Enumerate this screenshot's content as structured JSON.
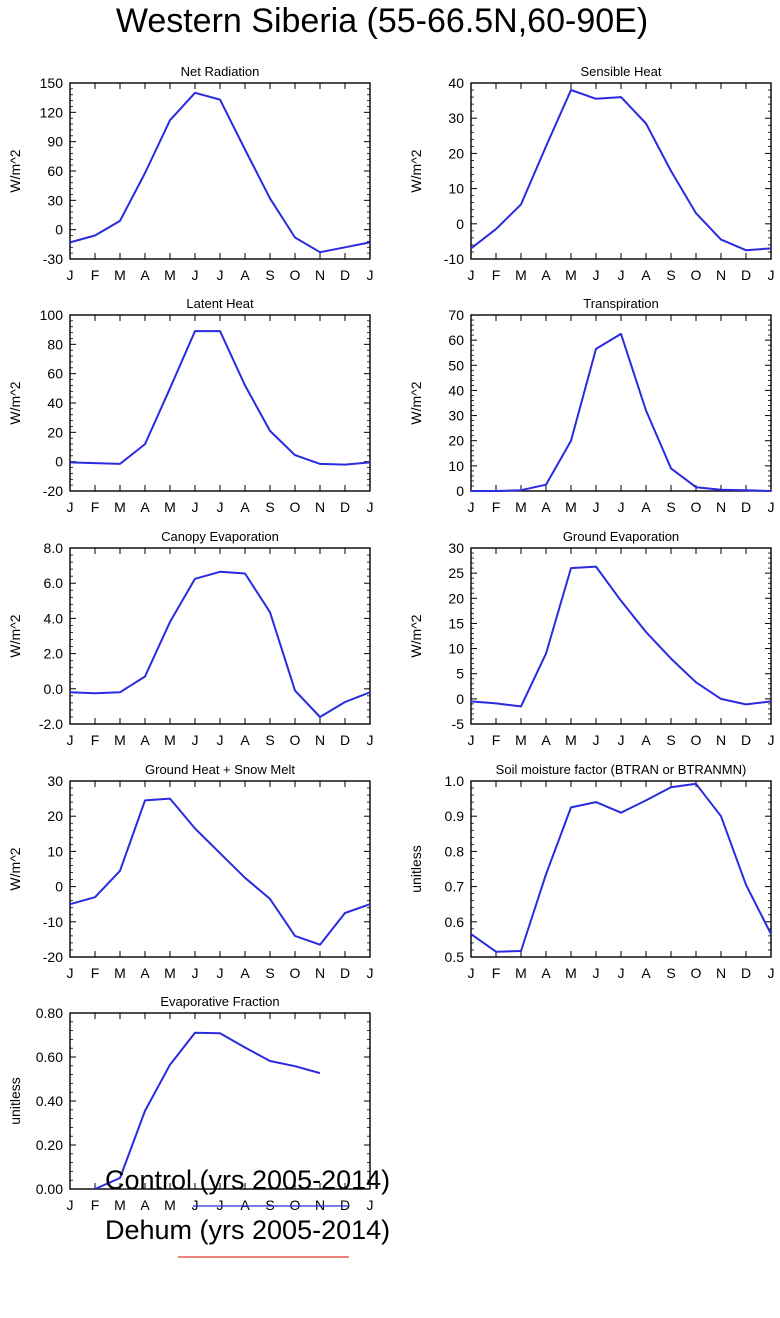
{
  "figure": {
    "title": "Western Siberia (55-66.5N,60-90E)",
    "legend": [
      {
        "label": "Control (yrs 2005-2014)",
        "color": "#2a2ae0"
      },
      {
        "label": "Dehum (yrs 2005-2014)",
        "color": "#e03a2a"
      }
    ]
  },
  "chart_data": [
    {
      "type": "line",
      "title": "Net Radiation",
      "ylabel": "W/m^2",
      "xlabel": "",
      "categories": [
        "J",
        "F",
        "M",
        "A",
        "M",
        "J",
        "J",
        "A",
        "S",
        "O",
        "N",
        "D",
        "J"
      ],
      "ylim": [
        -30,
        150
      ],
      "yticks": [
        -30,
        0,
        30,
        60,
        90,
        120,
        150
      ],
      "ytick_labels": [
        "-30",
        "0",
        "30",
        "60",
        "90",
        "120",
        "150"
      ],
      "series": [
        {
          "name": "Control (yrs 2005-2014)",
          "color": "#2a2ae0",
          "values": [
            -13,
            -6,
            9,
            58,
            112,
            140,
            133,
            82,
            32,
            -8,
            -23,
            -18,
            -13
          ]
        }
      ]
    },
    {
      "type": "line",
      "title": "Sensible Heat",
      "ylabel": "W/m^2",
      "xlabel": "",
      "categories": [
        "J",
        "F",
        "M",
        "A",
        "M",
        "J",
        "J",
        "A",
        "S",
        "O",
        "N",
        "D",
        "J"
      ],
      "ylim": [
        -10,
        40
      ],
      "yticks": [
        -10,
        0,
        10,
        20,
        30,
        40
      ],
      "ytick_labels": [
        "-10",
        "0",
        "10",
        "20",
        "30",
        "40"
      ],
      "series": [
        {
          "name": "Control (yrs 2005-2014)",
          "color": "#2a2ae0",
          "values": [
            -7,
            -1.5,
            5.5,
            22,
            38,
            35.5,
            36,
            28.5,
            15,
            3,
            -4.5,
            -7.5,
            -7
          ]
        }
      ]
    },
    {
      "type": "line",
      "title": "Latent Heat",
      "ylabel": "W/m^2",
      "xlabel": "",
      "categories": [
        "J",
        "F",
        "M",
        "A",
        "M",
        "J",
        "J",
        "A",
        "S",
        "O",
        "N",
        "D",
        "J"
      ],
      "ylim": [
        -20,
        100
      ],
      "yticks": [
        -20,
        0,
        20,
        40,
        60,
        80,
        100
      ],
      "ytick_labels": [
        "-20",
        "0",
        "20",
        "40",
        "60",
        "80",
        "100"
      ],
      "series": [
        {
          "name": "Control (yrs 2005-2014)",
          "color": "#2a2ae0",
          "values": [
            -0.5,
            -1,
            -1.5,
            12,
            50,
            89,
            89,
            52,
            21,
            4.5,
            -1.5,
            -2,
            -0.5
          ]
        }
      ]
    },
    {
      "type": "line",
      "title": "Transpiration",
      "ylabel": "W/m^2",
      "xlabel": "",
      "categories": [
        "J",
        "F",
        "M",
        "A",
        "M",
        "J",
        "J",
        "A",
        "S",
        "O",
        "N",
        "D",
        "J"
      ],
      "ylim": [
        0,
        70
      ],
      "yticks": [
        0,
        10,
        20,
        30,
        40,
        50,
        60,
        70
      ],
      "ytick_labels": [
        "0",
        "10",
        "20",
        "30",
        "40",
        "50",
        "60",
        "70"
      ],
      "series": [
        {
          "name": "Control (yrs 2005-2014)",
          "color": "#2a2ae0",
          "values": [
            0,
            0,
            0.3,
            2.5,
            20,
            56.5,
            62.5,
            32,
            9,
            1.5,
            0.5,
            0.3,
            0
          ]
        }
      ]
    },
    {
      "type": "line",
      "title": "Canopy Evaporation",
      "ylabel": "W/m^2",
      "xlabel": "",
      "categories": [
        "J",
        "F",
        "M",
        "A",
        "M",
        "J",
        "J",
        "A",
        "S",
        "O",
        "N",
        "D",
        "J"
      ],
      "ylim": [
        -2.0,
        8.0
      ],
      "yticks": [
        -2,
        0,
        2,
        4,
        6,
        8
      ],
      "ytick_labels": [
        "-2.0",
        "0.0",
        "2.0",
        "4.0",
        "6.0",
        "8.0"
      ],
      "series": [
        {
          "name": "Control (yrs 2005-2014)",
          "color": "#2a2ae0",
          "values": [
            -0.2,
            -0.25,
            -0.2,
            0.7,
            3.8,
            6.25,
            6.65,
            6.55,
            4.35,
            -0.1,
            -1.6,
            -0.75,
            -0.2
          ]
        }
      ]
    },
    {
      "type": "line",
      "title": "Ground Evaporation",
      "ylabel": "W/m^2",
      "xlabel": "",
      "categories": [
        "J",
        "F",
        "M",
        "A",
        "M",
        "J",
        "J",
        "A",
        "S",
        "O",
        "N",
        "D",
        "J"
      ],
      "ylim": [
        -5,
        30
      ],
      "yticks": [
        -5,
        0,
        5,
        10,
        15,
        20,
        25,
        30
      ],
      "ytick_labels": [
        "-5",
        "0",
        "5",
        "10",
        "15",
        "20",
        "25",
        "30"
      ],
      "series": [
        {
          "name": "Control (yrs 2005-2014)",
          "color": "#2a2ae0",
          "values": [
            -0.5,
            -0.9,
            -1.5,
            9,
            26,
            26.3,
            19.5,
            13.3,
            8,
            3.3,
            0,
            -1.1,
            -0.5
          ]
        }
      ]
    },
    {
      "type": "line",
      "title": "Ground Heat + Snow Melt",
      "ylabel": "W/m^2",
      "xlabel": "",
      "categories": [
        "J",
        "F",
        "M",
        "A",
        "M",
        "J",
        "J",
        "A",
        "S",
        "O",
        "N",
        "D",
        "J"
      ],
      "ylim": [
        -20,
        30
      ],
      "yticks": [
        -20,
        -10,
        0,
        10,
        20,
        30
      ],
      "ytick_labels": [
        "-20",
        "-10",
        "0",
        "10",
        "20",
        "30"
      ],
      "series": [
        {
          "name": "Control (yrs 2005-2014)",
          "color": "#2a2ae0",
          "values": [
            -5,
            -3,
            4.5,
            24.5,
            25,
            16.5,
            9.5,
            2.5,
            -3.5,
            -14,
            -16.5,
            -7.5,
            -5
          ]
        }
      ]
    },
    {
      "type": "line",
      "title": "Soil moisture factor (BTRAN or BTRANMN)",
      "ylabel": "unitless",
      "xlabel": "",
      "categories": [
        "J",
        "F",
        "M",
        "A",
        "M",
        "J",
        "J",
        "A",
        "S",
        "O",
        "N",
        "D",
        "J"
      ],
      "ylim": [
        0.5,
        1.0
      ],
      "yticks": [
        0.5,
        0.6,
        0.7,
        0.8,
        0.9,
        1.0
      ],
      "ytick_labels": [
        "0.5",
        "0.6",
        "0.7",
        "0.8",
        "0.9",
        "1.0"
      ],
      "series": [
        {
          "name": "Control (yrs 2005-2014)",
          "color": "#2a2ae0",
          "values": [
            0.565,
            0.515,
            0.517,
            0.735,
            0.925,
            0.94,
            0.91,
            0.945,
            0.982,
            0.992,
            0.9,
            0.705,
            0.565
          ]
        }
      ]
    },
    {
      "type": "line",
      "title": "Evaporative Fraction",
      "ylabel": "unitless",
      "xlabel": "",
      "categories": [
        "J",
        "F",
        "M",
        "A",
        "M",
        "J",
        "J",
        "A",
        "S",
        "O",
        "N",
        "D",
        "J"
      ],
      "ylim": [
        0.0,
        0.8
      ],
      "yticks": [
        0,
        0.2,
        0.4,
        0.6,
        0.8
      ],
      "ytick_labels": [
        "0.00",
        "0.20",
        "0.40",
        "0.60",
        "0.80"
      ],
      "series": [
        {
          "name": "Control (yrs 2005-2014)",
          "color": "#2a2ae0",
          "values": [
            null,
            0.0,
            0.05,
            0.355,
            0.565,
            0.71,
            0.708,
            0.643,
            0.582,
            0.558,
            0.527,
            null,
            null
          ]
        }
      ]
    }
  ]
}
